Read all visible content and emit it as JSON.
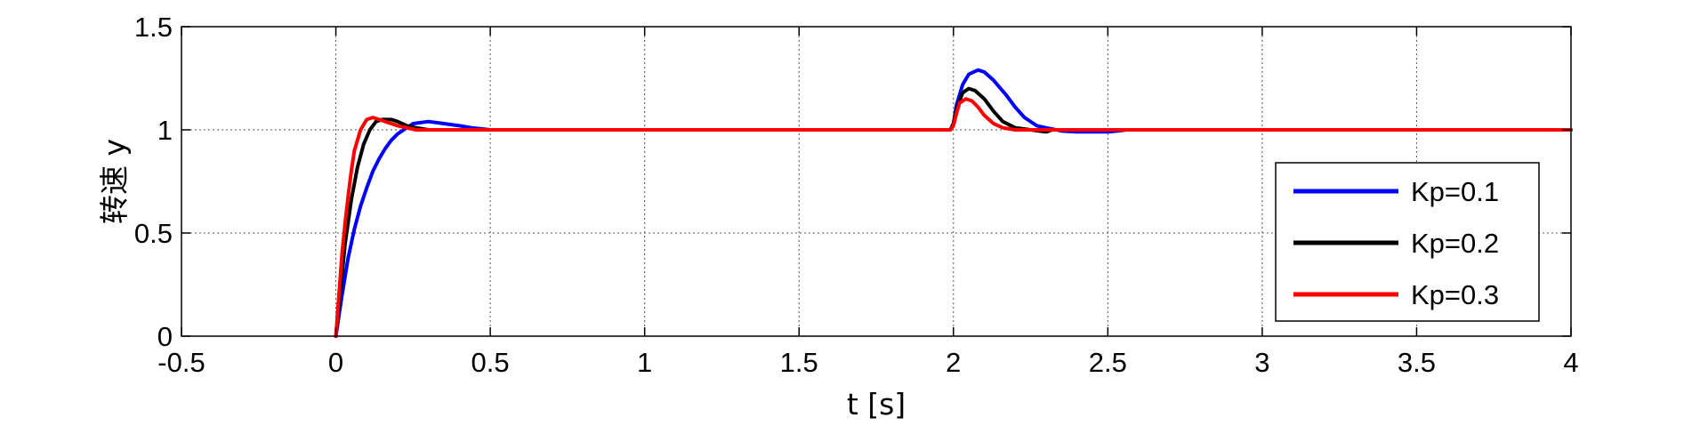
{
  "chart_data": {
    "type": "line",
    "title": "",
    "xlabel": "t [s]",
    "ylabel": "转速 y",
    "xlim": [
      -0.5,
      4
    ],
    "ylim": [
      0,
      1.5
    ],
    "xticks": [
      -0.5,
      0,
      0.5,
      1,
      1.5,
      2,
      2.5,
      3,
      3.5,
      4
    ],
    "yticks": [
      0,
      0.5,
      1,
      1.5
    ],
    "xtick_labels": [
      "-0.5",
      "0",
      "0.5",
      "1",
      "1.5",
      "2",
      "2.5",
      "3",
      "3.5",
      "4"
    ],
    "ytick_labels": [
      "0",
      "0.5",
      "1",
      "1.5"
    ],
    "grid": true,
    "legend_position": "right",
    "series": [
      {
        "name": "Kp=0.1",
        "color": "#0000ff",
        "x": [
          0,
          0.01,
          0.02,
          0.04,
          0.06,
          0.08,
          0.1,
          0.12,
          0.14,
          0.16,
          0.18,
          0.2,
          0.22,
          0.25,
          0.3,
          0.35,
          0.4,
          0.44,
          0.5,
          1.0,
          1.5,
          1.99,
          2.0,
          2.01,
          2.03,
          2.05,
          2.08,
          2.1,
          2.13,
          2.17,
          2.2,
          2.23,
          2.27,
          2.3,
          2.35,
          2.4,
          2.45,
          2.5,
          2.53,
          2.56,
          3.0,
          3.5,
          4.0
        ],
        "y": [
          0,
          0.1,
          0.2,
          0.38,
          0.52,
          0.63,
          0.72,
          0.8,
          0.86,
          0.91,
          0.95,
          0.98,
          1.0,
          1.03,
          1.04,
          1.03,
          1.02,
          1.01,
          1.0,
          1.0,
          1.0,
          1.0,
          1.03,
          1.12,
          1.22,
          1.27,
          1.29,
          1.28,
          1.24,
          1.17,
          1.11,
          1.06,
          1.02,
          1.01,
          0.995,
          0.99,
          0.99,
          0.99,
          0.995,
          1.0,
          1.0,
          1.0,
          1.0
        ]
      },
      {
        "name": "Kp=0.2",
        "color": "#000000",
        "x": [
          0,
          0.01,
          0.02,
          0.03,
          0.05,
          0.07,
          0.09,
          0.11,
          0.13,
          0.15,
          0.18,
          0.2,
          0.23,
          0.26,
          0.3,
          0.5,
          1.0,
          1.5,
          1.99,
          2.0,
          2.01,
          2.03,
          2.05,
          2.07,
          2.1,
          2.13,
          2.16,
          2.2,
          2.25,
          2.3,
          2.32,
          2.35,
          4.0
        ],
        "y": [
          0,
          0.15,
          0.3,
          0.45,
          0.66,
          0.82,
          0.93,
          1.0,
          1.04,
          1.05,
          1.05,
          1.04,
          1.02,
          1.01,
          1.0,
          1.0,
          1.0,
          1.0,
          1.0,
          1.03,
          1.1,
          1.18,
          1.2,
          1.19,
          1.15,
          1.09,
          1.04,
          1.01,
          1.0,
          0.99,
          1.0,
          1.0,
          1.0
        ]
      },
      {
        "name": "Kp=0.3",
        "color": "#ff0000",
        "x": [
          0,
          0.01,
          0.02,
          0.03,
          0.04,
          0.05,
          0.06,
          0.08,
          0.1,
          0.12,
          0.14,
          0.16,
          0.18,
          0.2,
          0.23,
          0.26,
          0.3,
          0.5,
          1.0,
          1.5,
          1.99,
          2.0,
          2.01,
          2.02,
          2.04,
          2.06,
          2.08,
          2.1,
          2.13,
          2.16,
          2.2,
          2.25,
          4.0
        ],
        "y": [
          0,
          0.2,
          0.4,
          0.55,
          0.68,
          0.8,
          0.9,
          1.0,
          1.05,
          1.06,
          1.05,
          1.04,
          1.03,
          1.02,
          1.01,
          1.0,
          1.0,
          1.0,
          1.0,
          1.0,
          1.0,
          1.02,
          1.08,
          1.13,
          1.15,
          1.14,
          1.11,
          1.07,
          1.03,
          1.01,
          1.0,
          1.0,
          1.0
        ]
      }
    ]
  }
}
